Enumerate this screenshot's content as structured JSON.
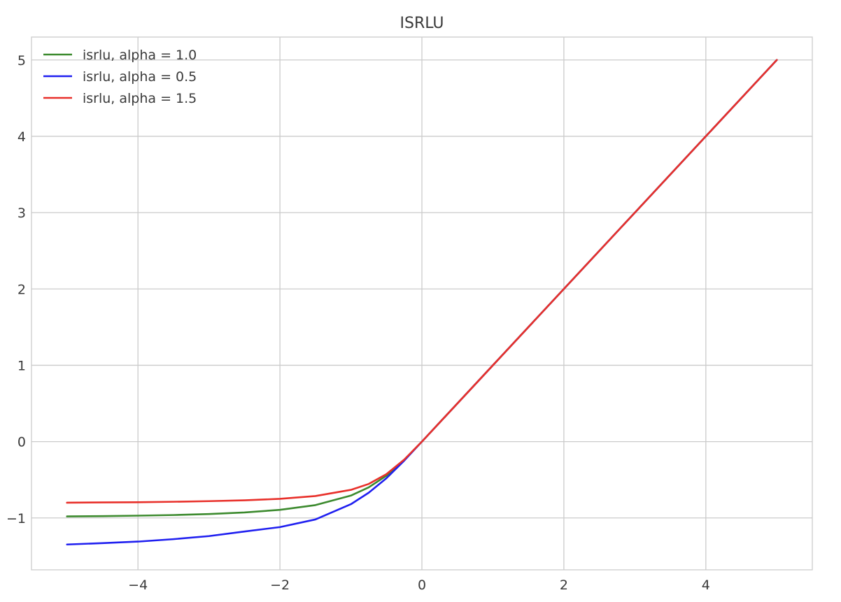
{
  "chart_data": {
    "type": "line",
    "title": "ISRLU",
    "xlabel": "",
    "ylabel": "",
    "xlim": [
      -5.5,
      5.5
    ],
    "ylim": [
      -1.68,
      5.3
    ],
    "xticks": [
      -4,
      -2,
      0,
      2,
      4
    ],
    "xtick_labels": [
      "−4",
      "−2",
      "0",
      "2",
      "4"
    ],
    "yticks": [
      -1,
      0,
      1,
      2,
      3,
      4,
      5
    ],
    "ytick_labels": [
      "−1",
      "0",
      "1",
      "2",
      "3",
      "4",
      "5"
    ],
    "grid": true,
    "legend_position": "top-left",
    "x": [
      -5,
      -4.5,
      -4,
      -3.5,
      -3,
      -2.5,
      -2,
      -1.5,
      -1,
      -0.75,
      -0.5,
      -0.25,
      0,
      1,
      2,
      3,
      4,
      5
    ],
    "series": [
      {
        "name": "isrlu, alpha = 1.0",
        "color": "#3c8a2e",
        "values": [
          -0.98,
          -0.976,
          -0.97,
          -0.962,
          -0.949,
          -0.928,
          -0.894,
          -0.832,
          -0.707,
          -0.6,
          -0.447,
          -0.243,
          0,
          1,
          2,
          3,
          4,
          5
        ]
      },
      {
        "name": "isrlu, alpha = 0.5",
        "color": "#1f1ff0",
        "values": [
          -1.348,
          -1.33,
          -1.31,
          -1.278,
          -1.238,
          -1.178,
          -1.12,
          -1.02,
          -0.82,
          -0.67,
          -0.48,
          -0.25,
          0,
          1,
          2,
          3,
          4,
          5
        ]
      },
      {
        "name": "isrlu, alpha = 1.5",
        "color": "#e8302a",
        "values": [
          -0.8,
          -0.797,
          -0.794,
          -0.788,
          -0.78,
          -0.769,
          -0.75,
          -0.713,
          -0.632,
          -0.555,
          -0.426,
          -0.236,
          0,
          1,
          2,
          3,
          4,
          5
        ]
      }
    ]
  }
}
